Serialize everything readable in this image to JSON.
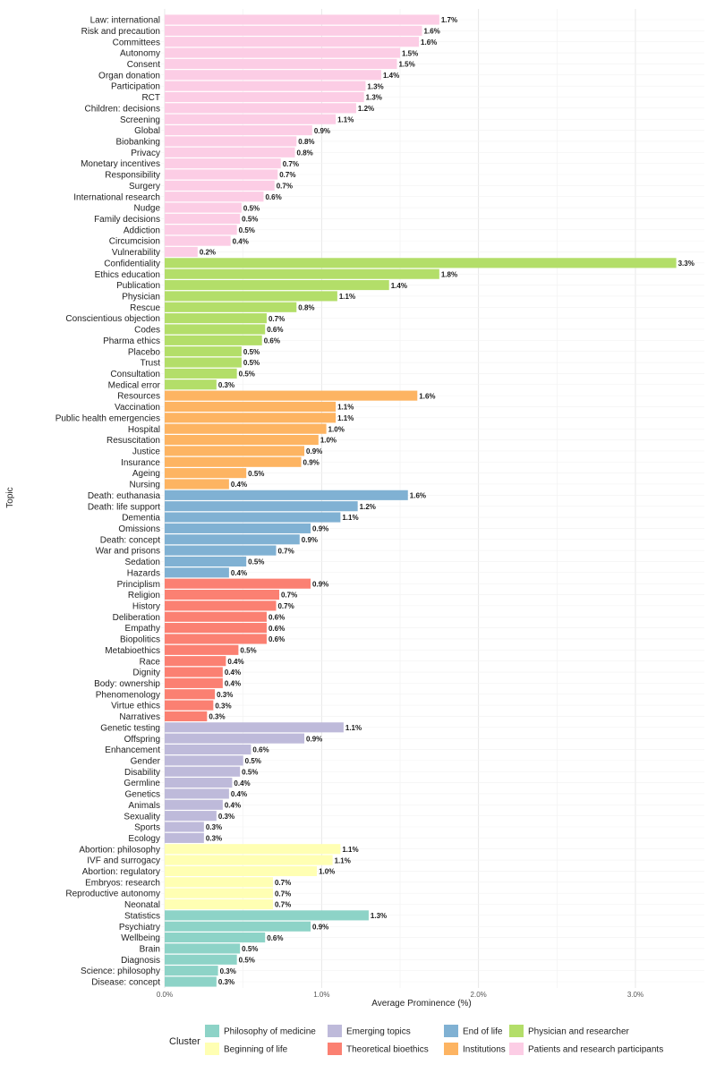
{
  "chart_data": {
    "type": "bar",
    "orientation": "horizontal",
    "title": "",
    "xlabel": "Average Prominence (%)",
    "ylabel": "Topic",
    "xlim": [
      0,
      3.4
    ],
    "x_ticks": [
      {
        "value": 0.0,
        "label": "0.0%"
      },
      {
        "value": 1.0,
        "label": "1.0%"
      },
      {
        "value": 2.0,
        "label": "2.0%"
      },
      {
        "value": 3.0,
        "label": "3.0%"
      }
    ],
    "grid": true,
    "legend_title": "Cluster",
    "legend_position": "bottom",
    "clusters": [
      {
        "key": "philosophy_of_medicine",
        "name": "Philosophy of medicine",
        "color": "#8dd3c7"
      },
      {
        "key": "emerging_topics",
        "name": "Emerging topics",
        "color": "#bebada"
      },
      {
        "key": "end_of_life",
        "name": "End of life",
        "color": "#80b1d3"
      },
      {
        "key": "physician_and_researcher",
        "name": "Physician and researcher",
        "color": "#b3de69"
      },
      {
        "key": "beginning_of_life",
        "name": "Beginning of life",
        "color": "#ffffb3"
      },
      {
        "key": "theoretical_bioethics",
        "name": "Theoretical bioethics",
        "color": "#fb8072"
      },
      {
        "key": "institutions",
        "name": "Institutions",
        "color": "#fdb462"
      },
      {
        "key": "patients_and_research_participants",
        "name": "Patients and research participants",
        "color": "#fccde5"
      }
    ],
    "series": [
      {
        "topic": "Law: international",
        "value": 1.75,
        "label": "1.7%",
        "cluster": "patients_and_research_participants"
      },
      {
        "topic": "Risk and precaution",
        "value": 1.64,
        "label": "1.6%",
        "cluster": "patients_and_research_participants"
      },
      {
        "topic": "Committees",
        "value": 1.62,
        "label": "1.6%",
        "cluster": "patients_and_research_participants"
      },
      {
        "topic": "Autonomy",
        "value": 1.5,
        "label": "1.5%",
        "cluster": "patients_and_research_participants"
      },
      {
        "topic": "Consent",
        "value": 1.48,
        "label": "1.5%",
        "cluster": "patients_and_research_participants"
      },
      {
        "topic": "Organ donation",
        "value": 1.38,
        "label": "1.4%",
        "cluster": "patients_and_research_participants"
      },
      {
        "topic": "Participation",
        "value": 1.28,
        "label": "1.3%",
        "cluster": "patients_and_research_participants"
      },
      {
        "topic": "RCT",
        "value": 1.27,
        "label": "1.3%",
        "cluster": "patients_and_research_participants"
      },
      {
        "topic": "Children: decisions",
        "value": 1.22,
        "label": "1.2%",
        "cluster": "patients_and_research_participants"
      },
      {
        "topic": "Screening",
        "value": 1.09,
        "label": "1.1%",
        "cluster": "patients_and_research_participants"
      },
      {
        "topic": "Global",
        "value": 0.94,
        "label": "0.9%",
        "cluster": "patients_and_research_participants"
      },
      {
        "topic": "Biobanking",
        "value": 0.84,
        "label": "0.8%",
        "cluster": "patients_and_research_participants"
      },
      {
        "topic": "Privacy",
        "value": 0.83,
        "label": "0.8%",
        "cluster": "patients_and_research_participants"
      },
      {
        "topic": "Monetary incentives",
        "value": 0.74,
        "label": "0.7%",
        "cluster": "patients_and_research_participants"
      },
      {
        "topic": "Responsibility",
        "value": 0.72,
        "label": "0.7%",
        "cluster": "patients_and_research_participants"
      },
      {
        "topic": "Surgery",
        "value": 0.7,
        "label": "0.7%",
        "cluster": "patients_and_research_participants"
      },
      {
        "topic": "International research",
        "value": 0.63,
        "label": "0.6%",
        "cluster": "patients_and_research_participants"
      },
      {
        "topic": "Nudge",
        "value": 0.49,
        "label": "0.5%",
        "cluster": "patients_and_research_participants"
      },
      {
        "topic": "Family decisions",
        "value": 0.48,
        "label": "0.5%",
        "cluster": "patients_and_research_participants"
      },
      {
        "topic": "Addiction",
        "value": 0.46,
        "label": "0.5%",
        "cluster": "patients_and_research_participants"
      },
      {
        "topic": "Circumcision",
        "value": 0.42,
        "label": "0.4%",
        "cluster": "patients_and_research_participants"
      },
      {
        "topic": "Vulnerability",
        "value": 0.21,
        "label": "0.2%",
        "cluster": "patients_and_research_participants"
      },
      {
        "topic": "Confidentiality",
        "value": 3.26,
        "label": "3.3%",
        "cluster": "physician_and_researcher"
      },
      {
        "topic": "Ethics education",
        "value": 1.75,
        "label": "1.8%",
        "cluster": "physician_and_researcher"
      },
      {
        "topic": "Publication",
        "value": 1.43,
        "label": "1.4%",
        "cluster": "physician_and_researcher"
      },
      {
        "topic": "Physician",
        "value": 1.1,
        "label": "1.1%",
        "cluster": "physician_and_researcher"
      },
      {
        "topic": "Rescue",
        "value": 0.84,
        "label": "0.8%",
        "cluster": "physician_and_researcher"
      },
      {
        "topic": "Conscientious objection",
        "value": 0.65,
        "label": "0.7%",
        "cluster": "physician_and_researcher"
      },
      {
        "topic": "Codes",
        "value": 0.64,
        "label": "0.6%",
        "cluster": "physician_and_researcher"
      },
      {
        "topic": "Pharma ethics",
        "value": 0.62,
        "label": "0.6%",
        "cluster": "physician_and_researcher"
      },
      {
        "topic": "Placebo",
        "value": 0.49,
        "label": "0.5%",
        "cluster": "physician_and_researcher"
      },
      {
        "topic": "Trust",
        "value": 0.49,
        "label": "0.5%",
        "cluster": "physician_and_researcher"
      },
      {
        "topic": "Consultation",
        "value": 0.46,
        "label": "0.5%",
        "cluster": "physician_and_researcher"
      },
      {
        "topic": "Medical error",
        "value": 0.33,
        "label": "0.3%",
        "cluster": "physician_and_researcher"
      },
      {
        "topic": "Resources",
        "value": 1.61,
        "label": "1.6%",
        "cluster": "institutions"
      },
      {
        "topic": "Vaccination",
        "value": 1.09,
        "label": "1.1%",
        "cluster": "institutions"
      },
      {
        "topic": "Public health emergencies",
        "value": 1.09,
        "label": "1.1%",
        "cluster": "institutions"
      },
      {
        "topic": "Hospital",
        "value": 1.03,
        "label": "1.0%",
        "cluster": "institutions"
      },
      {
        "topic": "Resuscitation",
        "value": 0.98,
        "label": "1.0%",
        "cluster": "institutions"
      },
      {
        "topic": "Justice",
        "value": 0.89,
        "label": "0.9%",
        "cluster": "institutions"
      },
      {
        "topic": "Insurance",
        "value": 0.87,
        "label": "0.9%",
        "cluster": "institutions"
      },
      {
        "topic": "Ageing",
        "value": 0.52,
        "label": "0.5%",
        "cluster": "institutions"
      },
      {
        "topic": "Nursing",
        "value": 0.41,
        "label": "0.4%",
        "cluster": "institutions"
      },
      {
        "topic": "Death: euthanasia",
        "value": 1.55,
        "label": "1.6%",
        "cluster": "end_of_life"
      },
      {
        "topic": "Death: life support",
        "value": 1.23,
        "label": "1.2%",
        "cluster": "end_of_life"
      },
      {
        "topic": "Dementia",
        "value": 1.12,
        "label": "1.1%",
        "cluster": "end_of_life"
      },
      {
        "topic": "Omissions",
        "value": 0.93,
        "label": "0.9%",
        "cluster": "end_of_life"
      },
      {
        "topic": "Death: concept",
        "value": 0.86,
        "label": "0.9%",
        "cluster": "end_of_life"
      },
      {
        "topic": "War and prisons",
        "value": 0.71,
        "label": "0.7%",
        "cluster": "end_of_life"
      },
      {
        "topic": "Sedation",
        "value": 0.52,
        "label": "0.5%",
        "cluster": "end_of_life"
      },
      {
        "topic": "Hazards",
        "value": 0.41,
        "label": "0.4%",
        "cluster": "end_of_life"
      },
      {
        "topic": "Principlism",
        "value": 0.93,
        "label": "0.9%",
        "cluster": "theoretical_bioethics"
      },
      {
        "topic": "Religion",
        "value": 0.73,
        "label": "0.7%",
        "cluster": "theoretical_bioethics"
      },
      {
        "topic": "History",
        "value": 0.71,
        "label": "0.7%",
        "cluster": "theoretical_bioethics"
      },
      {
        "topic": "Deliberation",
        "value": 0.65,
        "label": "0.6%",
        "cluster": "theoretical_bioethics"
      },
      {
        "topic": "Empathy",
        "value": 0.65,
        "label": "0.6%",
        "cluster": "theoretical_bioethics"
      },
      {
        "topic": "Biopolitics",
        "value": 0.65,
        "label": "0.6%",
        "cluster": "theoretical_bioethics"
      },
      {
        "topic": "Metabioethics",
        "value": 0.47,
        "label": "0.5%",
        "cluster": "theoretical_bioethics"
      },
      {
        "topic": "Race",
        "value": 0.39,
        "label": "0.4%",
        "cluster": "theoretical_bioethics"
      },
      {
        "topic": "Dignity",
        "value": 0.37,
        "label": "0.4%",
        "cluster": "theoretical_bioethics"
      },
      {
        "topic": "Body: ownership",
        "value": 0.37,
        "label": "0.4%",
        "cluster": "theoretical_bioethics"
      },
      {
        "topic": "Phenomenology",
        "value": 0.32,
        "label": "0.3%",
        "cluster": "theoretical_bioethics"
      },
      {
        "topic": "Virtue ethics",
        "value": 0.31,
        "label": "0.3%",
        "cluster": "theoretical_bioethics"
      },
      {
        "topic": "Narratives",
        "value": 0.27,
        "label": "0.3%",
        "cluster": "theoretical_bioethics"
      },
      {
        "topic": "Genetic testing",
        "value": 1.14,
        "label": "1.1%",
        "cluster": "emerging_topics"
      },
      {
        "topic": "Offspring",
        "value": 0.89,
        "label": "0.9%",
        "cluster": "emerging_topics"
      },
      {
        "topic": "Enhancement",
        "value": 0.55,
        "label": "0.6%",
        "cluster": "emerging_topics"
      },
      {
        "topic": "Gender",
        "value": 0.5,
        "label": "0.5%",
        "cluster": "emerging_topics"
      },
      {
        "topic": "Disability",
        "value": 0.48,
        "label": "0.5%",
        "cluster": "emerging_topics"
      },
      {
        "topic": "Germline",
        "value": 0.43,
        "label": "0.4%",
        "cluster": "emerging_topics"
      },
      {
        "topic": "Genetics",
        "value": 0.41,
        "label": "0.4%",
        "cluster": "emerging_topics"
      },
      {
        "topic": "Animals",
        "value": 0.37,
        "label": "0.4%",
        "cluster": "emerging_topics"
      },
      {
        "topic": "Sexuality",
        "value": 0.33,
        "label": "0.3%",
        "cluster": "emerging_topics"
      },
      {
        "topic": "Sports",
        "value": 0.25,
        "label": "0.3%",
        "cluster": "emerging_topics"
      },
      {
        "topic": "Ecology",
        "value": 0.25,
        "label": "0.3%",
        "cluster": "emerging_topics"
      },
      {
        "topic": "Abortion: philosophy",
        "value": 1.12,
        "label": "1.1%",
        "cluster": "beginning_of_life"
      },
      {
        "topic": "IVF and surrogacy",
        "value": 1.07,
        "label": "1.1%",
        "cluster": "beginning_of_life"
      },
      {
        "topic": "Abortion: regulatory",
        "value": 0.97,
        "label": "1.0%",
        "cluster": "beginning_of_life"
      },
      {
        "topic": "Embryos: research",
        "value": 0.69,
        "label": "0.7%",
        "cluster": "beginning_of_life"
      },
      {
        "topic": "Reproductive autonomy",
        "value": 0.69,
        "label": "0.7%",
        "cluster": "beginning_of_life"
      },
      {
        "topic": "Neonatal",
        "value": 0.69,
        "label": "0.7%",
        "cluster": "beginning_of_life"
      },
      {
        "topic": "Statistics",
        "value": 1.3,
        "label": "1.3%",
        "cluster": "philosophy_of_medicine"
      },
      {
        "topic": "Psychiatry",
        "value": 0.93,
        "label": "0.9%",
        "cluster": "philosophy_of_medicine"
      },
      {
        "topic": "Wellbeing",
        "value": 0.64,
        "label": "0.6%",
        "cluster": "philosophy_of_medicine"
      },
      {
        "topic": "Brain",
        "value": 0.48,
        "label": "0.5%",
        "cluster": "philosophy_of_medicine"
      },
      {
        "topic": "Diagnosis",
        "value": 0.46,
        "label": "0.5%",
        "cluster": "philosophy_of_medicine"
      },
      {
        "topic": "Science: philosophy",
        "value": 0.34,
        "label": "0.3%",
        "cluster": "philosophy_of_medicine"
      },
      {
        "topic": "Disease: concept",
        "value": 0.33,
        "label": "0.3%",
        "cluster": "philosophy_of_medicine"
      }
    ]
  }
}
